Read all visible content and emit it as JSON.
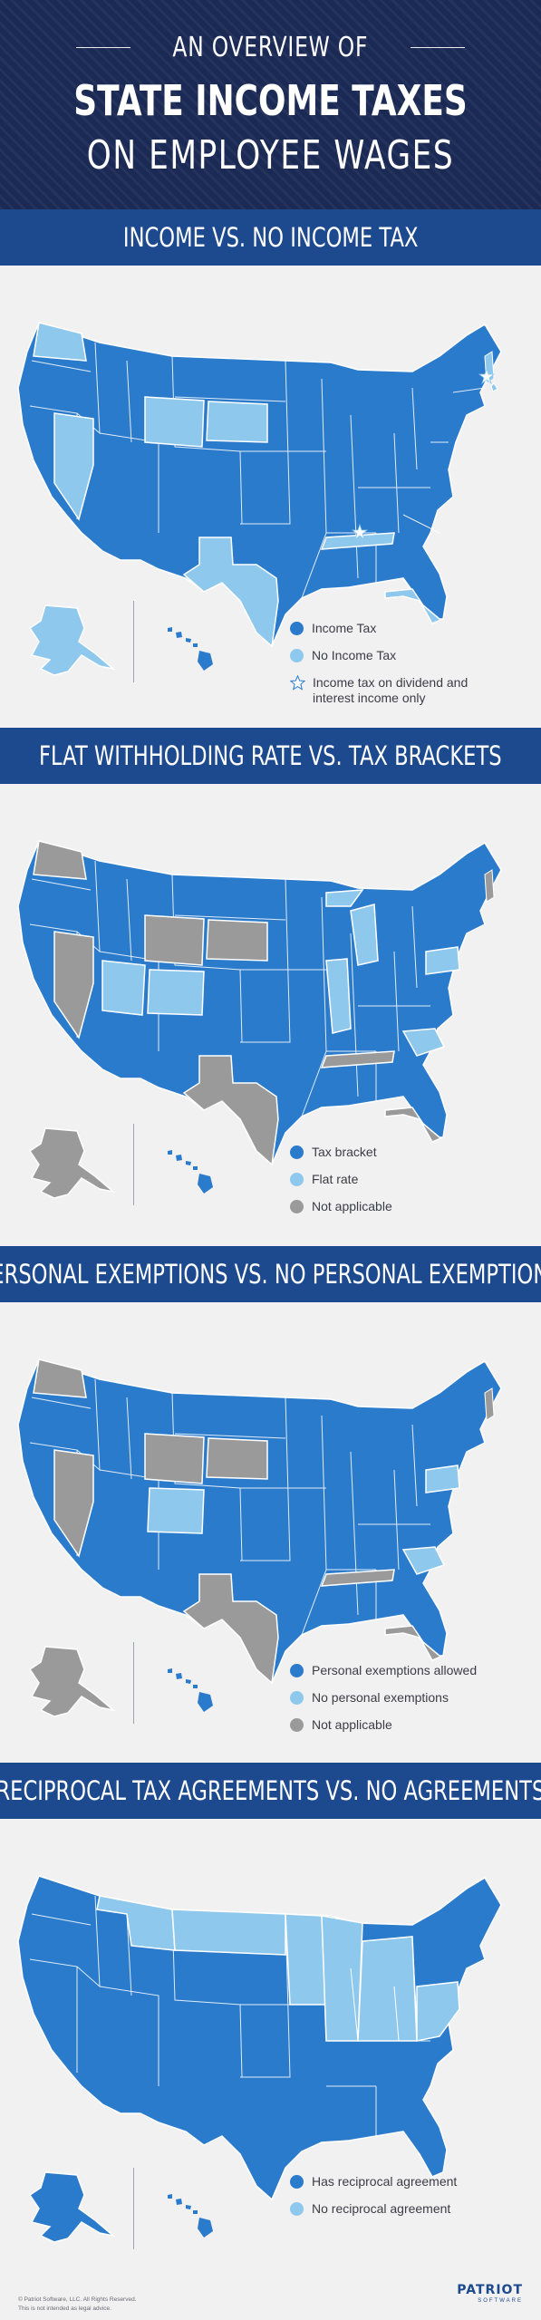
{
  "header": {
    "line1": "AN OVERVIEW OF",
    "line2": "STATE INCOME TAXES",
    "line3": "ON  EMPLOYEE  WAGES"
  },
  "colors": {
    "dark_blue": "#2b7bcc",
    "light_blue": "#8ec8ec",
    "gray": "#9a9a9a",
    "band": "#1d4a8e",
    "header_bg": "#1b2a55"
  },
  "sections": [
    {
      "title": "INCOME VS. NO INCOME TAX",
      "legend": [
        {
          "label": "Income Tax",
          "swatch": "dark_blue"
        },
        {
          "label": "No Income Tax",
          "swatch": "light_blue"
        },
        {
          "label": "Income tax on dividend and interest income only",
          "swatch": "star"
        }
      ]
    },
    {
      "title": "FLAT WITHHOLDING RATE VS. TAX BRACKETS",
      "legend": [
        {
          "label": "Tax bracket",
          "swatch": "dark_blue"
        },
        {
          "label": "Flat rate",
          "swatch": "light_blue"
        },
        {
          "label": "Not applicable",
          "swatch": "gray"
        }
      ]
    },
    {
      "title": "PERSONAL EXEMPTIONS VS. NO PERSONAL EXEMPTIONS",
      "legend": [
        {
          "label": "Personal exemptions allowed",
          "swatch": "dark_blue"
        },
        {
          "label": "No personal exemptions",
          "swatch": "light_blue"
        },
        {
          "label": "Not applicable",
          "swatch": "gray"
        }
      ]
    },
    {
      "title": "RECIPROCAL TAX AGREEMENTS VS. NO AGREEMENTS",
      "legend": [
        {
          "label": "Has reciprocal agreement",
          "swatch": "dark_blue"
        },
        {
          "label": "No reciprocal agreement",
          "swatch": "light_blue"
        }
      ]
    }
  ],
  "footer": {
    "copyright": "© Patriot Software, LLC. All Rights Reserved.",
    "disclaimer": "This is not intended as legal advice.",
    "logo_main": "PATRIOT",
    "logo_sub": "SOFTWARE"
  }
}
